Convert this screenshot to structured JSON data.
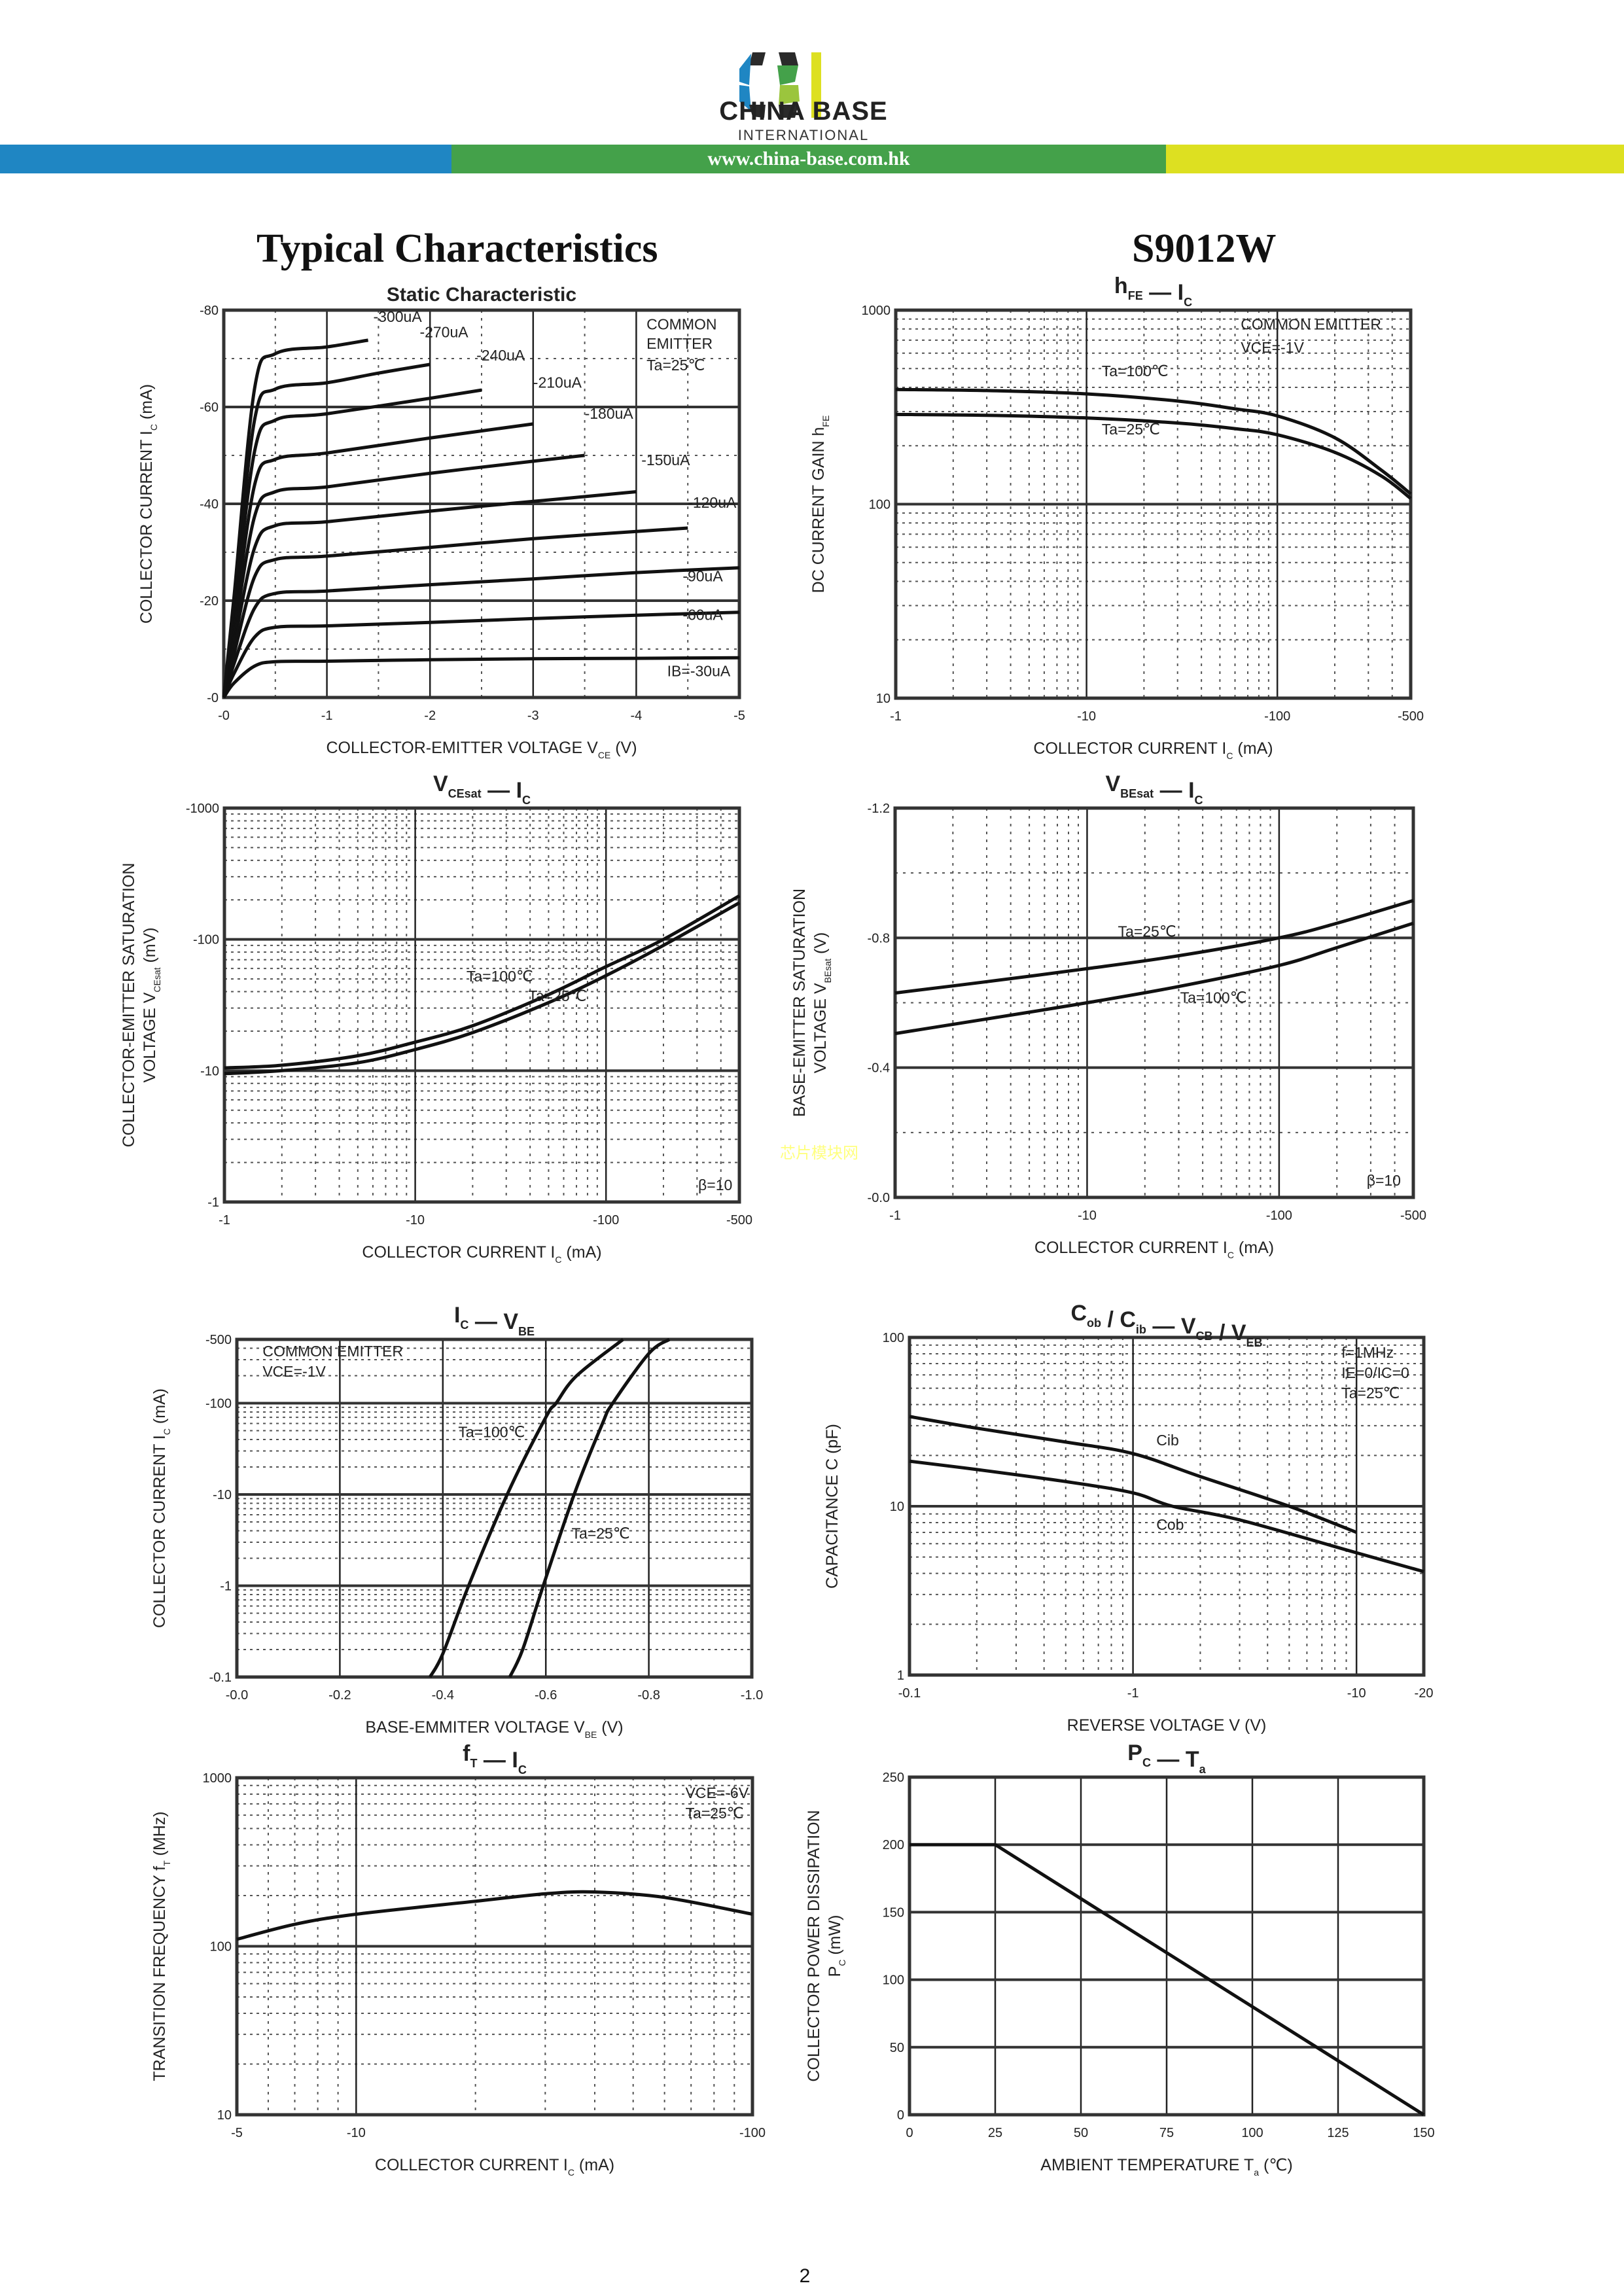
{
  "header": {
    "logo_letters": "CBI",
    "company_name": "CHINA BASE",
    "company_sub": "INTERNATIONAL",
    "url": "www.china-base.com.hk",
    "colors": {
      "blue": "#1f86c3",
      "green": "#44a14a",
      "yellow": "#dde021",
      "dark": "#222222"
    }
  },
  "page": {
    "title": "Typical Characteristics",
    "part_number": "S9012W",
    "page_number": "2",
    "watermark": "芯片模块网"
  },
  "chart_data": [
    {
      "id": "static",
      "type": "line",
      "title": "Static Characteristic",
      "xlabel": "COLLECTOR-EMITTER VOLTAGE   V",
      "xlabel_sub": "CE",
      "xlabel_unit": "(V)",
      "ylabel": "COLLECTOR CURRENT   I",
      "ylabel_sub": "C",
      "ylabel_unit": "(mA)",
      "xscale": "linear",
      "yscale": "linear",
      "xlim": [
        0,
        -5
      ],
      "ylim": [
        0,
        -80
      ],
      "xticks": [
        0,
        -1,
        -2,
        -3,
        -4,
        -5
      ],
      "xtick_labels": [
        "-0",
        "-1",
        "-2",
        "-3",
        "-4",
        "-5"
      ],
      "yticks": [
        0,
        -20,
        -40,
        -60,
        -80
      ],
      "ytick_labels": [
        "-0",
        "-20",
        "-40",
        "-60",
        "-80"
      ],
      "annotations": [
        "COMMON",
        "EMITTER",
        "Ta=25℃"
      ],
      "series": [
        {
          "name": "IB=-30uA",
          "label": "IB=-30uA",
          "x": [
            0,
            -0.1,
            -0.3,
            -0.5,
            -1,
            -2,
            -3,
            -4,
            -5
          ],
          "y": [
            0,
            -3,
            -6.5,
            -7.4,
            -7.5,
            -7.8,
            -8,
            -8.1,
            -8.2
          ]
        },
        {
          "name": "-60uA",
          "label": "-60uA",
          "x": [
            0,
            -0.1,
            -0.3,
            -0.5,
            -1,
            -2,
            -3,
            -4,
            -5
          ],
          "y": [
            0,
            -5,
            -12.5,
            -14.5,
            -14.8,
            -15.5,
            -16.3,
            -17,
            -17.6
          ]
        },
        {
          "name": "-90uA",
          "label": "-90uA",
          "x": [
            0,
            -0.1,
            -0.3,
            -0.5,
            -1,
            -2,
            -3,
            -4,
            -5
          ],
          "y": [
            0,
            -7,
            -18.5,
            -21.5,
            -22,
            -23.3,
            -24.5,
            -25.8,
            -26.8
          ]
        },
        {
          "name": "-120uA",
          "label": "-120uA",
          "x": [
            0,
            -0.1,
            -0.3,
            -0.5,
            -1,
            -2,
            -3,
            -4,
            -4.5
          ],
          "y": [
            0,
            -9,
            -25,
            -28.5,
            -29.2,
            -31,
            -32.8,
            -34.3,
            -35
          ]
        },
        {
          "name": "-150uA",
          "label": "-150uA",
          "x": [
            0,
            -0.1,
            -0.3,
            -0.5,
            -1,
            -2,
            -3,
            -4
          ],
          "y": [
            0,
            -11,
            -31,
            -35.5,
            -36.3,
            -38.5,
            -40.5,
            -42.5
          ]
        },
        {
          "name": "-180uA",
          "label": "-180uA",
          "x": [
            0,
            -0.1,
            -0.3,
            -0.5,
            -1,
            -2,
            -3,
            -3.5
          ],
          "y": [
            0,
            -13,
            -37.5,
            -42.5,
            -43.5,
            -46.3,
            -48.8,
            -50
          ]
        },
        {
          "name": "-210uA",
          "label": "-210uA",
          "x": [
            0,
            -0.1,
            -0.3,
            -0.5,
            -1,
            -2,
            -3
          ],
          "y": [
            0,
            -15,
            -44,
            -49.2,
            -50.5,
            -53.6,
            -56.5
          ]
        },
        {
          "name": "-240uA",
          "label": "-240uA",
          "x": [
            0,
            -0.1,
            -0.3,
            -0.5,
            -1,
            -2,
            -2.5
          ],
          "y": [
            0,
            -17,
            -51,
            -57.3,
            -58.6,
            -61.8,
            -63.5
          ]
        },
        {
          "name": "-270uA",
          "label": "-270uA",
          "x": [
            0,
            -0.1,
            -0.3,
            -0.5,
            -1,
            -1.5,
            -2
          ],
          "y": [
            0,
            -19,
            -57.5,
            -63.7,
            -65,
            -67,
            -68.8
          ]
        },
        {
          "name": "-300uA",
          "label": "-300uA",
          "x": [
            0,
            -0.1,
            -0.3,
            -0.5,
            -1,
            -1.4
          ],
          "y": [
            0,
            -21,
            -64,
            -71,
            -72.4,
            -73.8
          ]
        }
      ]
    },
    {
      "id": "hfe",
      "type": "line",
      "title": "hFE — IC",
      "title_parts": [
        "h",
        "FE",
        "I",
        "C"
      ],
      "xlabel": "COLLECTOR CURRENT   I",
      "xlabel_sub": "C",
      "xlabel_unit": "(mA)",
      "ylabel": "DC CURRENT GAIN   h",
      "ylabel_sub": "FE",
      "ylabel_unit": "",
      "xscale": "log",
      "yscale": "log",
      "xlim": [
        1,
        500
      ],
      "ylim": [
        10,
        1000
      ],
      "xticks": [
        1,
        10,
        100,
        500
      ],
      "xtick_labels": [
        "-1",
        "-10",
        "-100",
        "-500"
      ],
      "yticks": [
        10,
        100,
        1000
      ],
      "ytick_labels": [
        "10",
        "100",
        "1000"
      ],
      "annotations": [
        "COMMON EMITTER",
        "VCE=-1V"
      ],
      "series": [
        {
          "name": "Ta=100℃",
          "label": "Ta=100℃",
          "x": [
            1,
            3,
            10,
            30,
            60,
            100,
            200,
            350,
            500
          ],
          "y": [
            390,
            385,
            370,
            340,
            310,
            285,
            220,
            150,
            113
          ]
        },
        {
          "name": "Ta=25℃",
          "label": "Ta=25℃",
          "x": [
            1,
            3,
            10,
            30,
            60,
            100,
            200,
            350,
            500
          ],
          "y": [
            290,
            287,
            278,
            262,
            245,
            228,
            185,
            140,
            107
          ]
        }
      ]
    },
    {
      "id": "vcesat",
      "type": "line",
      "title": "VCEsat — IC",
      "title_parts": [
        "V",
        "CEsat",
        "I",
        "C"
      ],
      "xlabel": "COLLECTOR CURRENT   I",
      "xlabel_sub": "C",
      "xlabel_unit": "(mA)",
      "ylabel": "COLLECTOR-EMITTER SATURATION",
      "ylabel2": "VOLTAGE   V",
      "ylabel_sub": "CEsat",
      "ylabel_unit": "(mV)",
      "xscale": "log",
      "yscale": "log",
      "xlim": [
        1,
        500
      ],
      "ylim": [
        1,
        1000
      ],
      "xticks": [
        1,
        10,
        100,
        500
      ],
      "xtick_labels": [
        "-1",
        "-10",
        "-100",
        "-500"
      ],
      "yticks": [
        1,
        10,
        100,
        1000
      ],
      "ytick_labels": [
        "-1",
        "-10",
        "-100",
        "-1000"
      ],
      "annotations": [
        "β=10"
      ],
      "series": [
        {
          "name": "Ta=100℃",
          "label": "Ta=100℃",
          "x": [
            1,
            2,
            5,
            10,
            20,
            50,
            100,
            200,
            500
          ],
          "y": [
            10.5,
            11,
            13,
            16.5,
            22,
            38,
            62,
            100,
            215
          ]
        },
        {
          "name": "Ta=25℃",
          "label": "Ta=25℃",
          "x": [
            1,
            2,
            5,
            10,
            20,
            50,
            100,
            200,
            500
          ],
          "y": [
            9.5,
            10,
            11.5,
            14.5,
            19.5,
            33,
            53,
            90,
            190
          ]
        }
      ]
    },
    {
      "id": "vbesat",
      "type": "line",
      "title": "VBEsat — IC",
      "title_parts": [
        "V",
        "BEsat",
        "I",
        "C"
      ],
      "xlabel": "COLLECTOR CURRENT   I",
      "xlabel_sub": "C",
      "xlabel_unit": "(mA)",
      "ylabel": "BASE-EMITTER SATURATION",
      "ylabel2": "VOLTAGE   V",
      "ylabel_sub": "BEsat",
      "ylabel_unit": "(V)",
      "xscale": "log",
      "yscale": "linear",
      "xlim": [
        1,
        500
      ],
      "ylim": [
        0,
        -1.2
      ],
      "xticks": [
        1,
        10,
        100,
        500
      ],
      "xtick_labels": [
        "-1",
        "-10",
        "-100",
        "-500"
      ],
      "yticks": [
        0,
        -0.4,
        -0.8,
        -1.2
      ],
      "ytick_labels": [
        "-0.0",
        "-0.4",
        "-0.8",
        "-1.2"
      ],
      "annotations": [
        "β=10"
      ],
      "series": [
        {
          "name": "Ta=25℃",
          "label": "Ta=25℃",
          "x": [
            1,
            3,
            10,
            30,
            100,
            200,
            500
          ],
          "y": [
            -0.63,
            -0.665,
            -0.705,
            -0.745,
            -0.8,
            -0.845,
            -0.915
          ]
        },
        {
          "name": "Ta=100℃",
          "label": "Ta=100℃",
          "x": [
            1,
            3,
            10,
            30,
            100,
            200,
            500
          ],
          "y": [
            -0.505,
            -0.55,
            -0.6,
            -0.65,
            -0.715,
            -0.77,
            -0.845
          ]
        }
      ]
    },
    {
      "id": "icvbe",
      "type": "line",
      "title": "IC — VBE",
      "title_parts": [
        "I",
        "C",
        "V",
        "BE"
      ],
      "xlabel": "BASE-EMMITER VOLTAGE   V",
      "xlabel_sub": "BE",
      "xlabel_unit": "(V)",
      "ylabel": "COLLECTOR CURRENT   I",
      "ylabel_sub": "C",
      "ylabel_unit": "(mA)",
      "xscale": "linear",
      "yscale": "log",
      "xlim": [
        0,
        -1.0
      ],
      "ylim": [
        0.1,
        500
      ],
      "xticks": [
        0,
        -0.2,
        -0.4,
        -0.6,
        -0.8,
        -1.0
      ],
      "xtick_labels": [
        "-0.0",
        "-0.2",
        "-0.4",
        "-0.6",
        "-0.8",
        "-1.0"
      ],
      "yticks": [
        0.1,
        1,
        10,
        100,
        500
      ],
      "ytick_labels": [
        "-0.1",
        "-1",
        "-10",
        "-100",
        "-500"
      ],
      "annotations": [
        "COMMON EMITTER",
        "VCE=-1V"
      ],
      "series": [
        {
          "name": "Ta=100℃",
          "label": "Ta=100℃",
          "x": [
            -0.375,
            -0.4,
            -0.45,
            -0.525,
            -0.6,
            -0.62,
            -0.66,
            -0.75
          ],
          "y": [
            0.1,
            0.18,
            1,
            10,
            70,
            100,
            200,
            500
          ]
        },
        {
          "name": "Ta=25℃",
          "label": "Ta=25℃",
          "x": [
            -0.53,
            -0.555,
            -0.595,
            -0.655,
            -0.71,
            -0.73,
            -0.8,
            -0.84
          ],
          "y": [
            0.1,
            0.2,
            1,
            10,
            60,
            100,
            350,
            500
          ]
        }
      ]
    },
    {
      "id": "cap",
      "type": "line",
      "title": "Cob / Cib — VCB / VEB",
      "title_parts": [
        "C",
        "ob",
        "C",
        "ib",
        "V",
        "CB",
        "V",
        "EB"
      ],
      "xlabel": "REVERSE VOLTAGE   V",
      "xlabel_sub": "",
      "xlabel_unit": "(V)",
      "ylabel": "CAPACITANCE   C",
      "ylabel_sub": "",
      "ylabel_unit": "(pF)",
      "xscale": "log",
      "yscale": "log",
      "xlim": [
        0.1,
        20
      ],
      "ylim": [
        1,
        100
      ],
      "xticks": [
        0.1,
        1,
        10,
        20
      ],
      "xtick_labels": [
        "-0.1",
        "-1",
        "-10",
        "-20"
      ],
      "yticks": [
        1,
        10,
        100
      ],
      "ytick_labels": [
        "1",
        "10",
        "100"
      ],
      "annotations": [
        "f=1MHz",
        "IE=0/IC=0",
        "Ta=25℃"
      ],
      "series": [
        {
          "name": "Cib",
          "label": "Cib",
          "x": [
            0.1,
            0.2,
            0.5,
            1,
            2,
            5,
            10
          ],
          "y": [
            34,
            29,
            24,
            20.5,
            15,
            10,
            7
          ]
        },
        {
          "name": "Cob",
          "label": "Cob",
          "x": [
            0.1,
            0.2,
            0.5,
            1,
            1.5,
            3,
            10,
            20
          ],
          "y": [
            18.5,
            16.5,
            14,
            12,
            10,
            8.3,
            5.3,
            4.1
          ]
        }
      ]
    },
    {
      "id": "ft",
      "type": "line",
      "title": "fT — IC",
      "title_parts": [
        "f",
        "T",
        "I",
        "C"
      ],
      "xlabel": "COLLECTOR CURRENT   I",
      "xlabel_sub": "C",
      "xlabel_unit": "(mA)",
      "ylabel": "TRANSITION FREQUENCY   f",
      "ylabel_sub": "T",
      "ylabel_unit": "(MHz)",
      "xscale": "log",
      "yscale": "log",
      "xlim": [
        5,
        100
      ],
      "ylim": [
        10,
        1000
      ],
      "xticks": [
        5,
        10,
        100
      ],
      "xtick_labels": [
        "-5",
        "-10",
        "-100"
      ],
      "yticks": [
        10,
        100,
        1000
      ],
      "ytick_labels": [
        "10",
        "100",
        "1000"
      ],
      "annotations": [
        "VCE=-6V",
        "Ta=25℃"
      ],
      "series": [
        {
          "name": "fT",
          "label": "",
          "x": [
            5,
            7,
            10,
            20,
            30,
            40,
            60,
            100
          ],
          "y": [
            110,
            135,
            155,
            185,
            205,
            210,
            195,
            155
          ]
        }
      ]
    },
    {
      "id": "pc",
      "type": "line",
      "title": "PC — Ta",
      "title_parts": [
        "P",
        "C",
        "T",
        "a"
      ],
      "xlabel": "AMBIENT TEMPERATURE   T",
      "xlabel_sub": "a",
      "xlabel_unit": "(℃)",
      "ylabel": "COLLECTOR POWER DISSIPATION",
      "ylabel2": "P",
      "ylabel_sub": "C",
      "ylabel_unit": "(mW)",
      "xscale": "linear",
      "yscale": "linear",
      "xlim": [
        0,
        150
      ],
      "ylim": [
        0,
        250
      ],
      "xticks": [
        0,
        25,
        50,
        75,
        100,
        125,
        150
      ],
      "xtick_labels": [
        "0",
        "25",
        "50",
        "75",
        "100",
        "125",
        "150"
      ],
      "yticks": [
        0,
        50,
        100,
        150,
        200,
        250
      ],
      "ytick_labels": [
        "0",
        "50",
        "100",
        "150",
        "200",
        "250"
      ],
      "annotations": [],
      "series": [
        {
          "name": "PC",
          "label": "",
          "x": [
            0,
            25,
            150
          ],
          "y": [
            200,
            200,
            0
          ]
        }
      ]
    }
  ]
}
